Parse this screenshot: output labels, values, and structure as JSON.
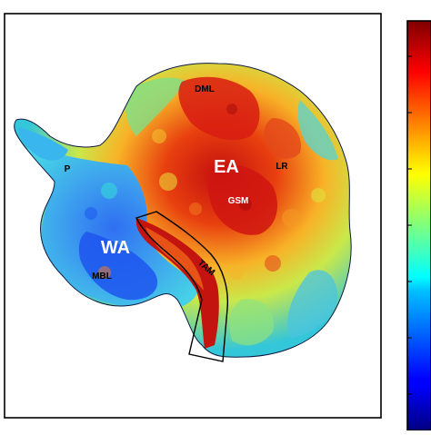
{
  "map": {
    "labels": {
      "ea": "EA",
      "wa": "WA",
      "dml": "DML",
      "lr": "LR",
      "gsm": "GSM",
      "p": "P",
      "mbl": "MBL",
      "tam": "TAM"
    },
    "colors": {
      "ocean": "#ffffff",
      "frame": "#000000",
      "low": "#2b6bf3",
      "high": "#d21414",
      "mid": "#f6b629",
      "label_light": "#ffffff",
      "label_dark": "#000000"
    }
  },
  "colorbar": {
    "colormap": "jet",
    "orientation": "vertical",
    "ticks_visible": false
  }
}
